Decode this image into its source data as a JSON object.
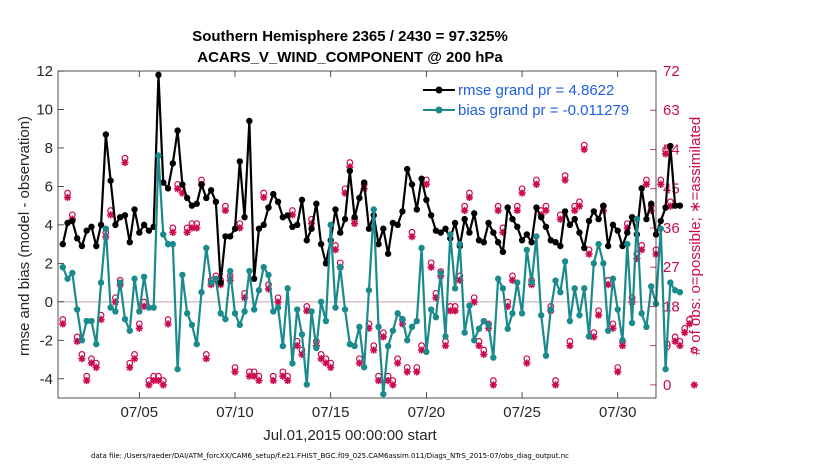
{
  "chart_data": {
    "type": "line",
    "title": "Southern Hemisphere 2365 / 2430 = 97.325%",
    "subtitle": "ACARS_V_WIND_COMPONENT @ 200 hPa",
    "xlabel": "Jul.01,2015 00:00:00 start",
    "ylabel": "rmse and bias (model - observation)",
    "ylabel_right": "# of obs: o=possible; ∗=assimilated",
    "footnote": "data file: /Users/raeder/DAI/ATM_forcXX/CAM6_setup/f.e21.FHIST_BGC.f09_025.CAM6assim.011/Diags_NTrS_2015-07/obs_diag_output.nc",
    "xlim": [
      0.75,
      32.0
    ],
    "ylim": [
      -5,
      12
    ],
    "ylim_right": [
      -3,
      72
    ],
    "x_tick_positions": [
      5,
      10,
      15,
      20,
      25,
      30
    ],
    "x_tick_labels": [
      "07/05",
      "07/10",
      "07/15",
      "07/20",
      "07/25",
      "07/30"
    ],
    "y_ticks": [
      -4,
      -2,
      0,
      2,
      4,
      6,
      8,
      10,
      12
    ],
    "y_ticks_right": [
      0,
      9,
      18,
      27,
      36,
      45,
      54,
      63,
      72
    ],
    "colors": {
      "rmse": "#000000",
      "bias": "#1a8a8c",
      "obs": "#cc0a52",
      "zero": "#c8b0b4",
      "legend_text": "#1f5fe0"
    },
    "series": [
      {
        "name": "rmse grand pr = 4.8622",
        "color": "#000000",
        "x_start": 1.0,
        "x_step": 0.25,
        "values": [
          3.0,
          4.1,
          4.2,
          3.3,
          2.9,
          3.7,
          3.9,
          2.9,
          4.0,
          8.7,
          6.3,
          4.0,
          4.4,
          4.5,
          3.1,
          4.8,
          3.6,
          4.0,
          3.7,
          3.9,
          11.8,
          6.2,
          5.9,
          7.2,
          8.9,
          6.1,
          5.4,
          5.0,
          5.1,
          6.1,
          5.4,
          5.8,
          5.2,
          1.0,
          3.4,
          3.4,
          3.8,
          7.3,
          4.4,
          9.4,
          1.2,
          3.8,
          4.0,
          4.9,
          5.6,
          5.2,
          4.4,
          4.5,
          3.9,
          4.0,
          5.3,
          3.2,
          3.8,
          5.1,
          3.0,
          2.0,
          3.2,
          4.8,
          3.6,
          4.3,
          6.8,
          4.4,
          5.4,
          6.2,
          3.8,
          4.5,
          3.0,
          3.8,
          2.5,
          4.1,
          4.0,
          4.7,
          6.9,
          6.1,
          4.8,
          6.4,
          5.3,
          4.5,
          3.7,
          3.6,
          3.8,
          3.3,
          4.1,
          2.9,
          4.3,
          3.6,
          4.6,
          3.2,
          3.1,
          4.1,
          3.6,
          3.1,
          2.6,
          4.9,
          4.3,
          3.9,
          3.2,
          3.5,
          3.1,
          4.9,
          4.4,
          3.9,
          3.2,
          3.1,
          2.9,
          4.7,
          4.0,
          4.3,
          3.6,
          2.8,
          4.2,
          4.7,
          4.3,
          5.0,
          2.9,
          4.0,
          3.7,
          2.9,
          3.6,
          4.4,
          3.5,
          5.9,
          4.3,
          5.1,
          3.5,
          4.2,
          4.9,
          8.1,
          5.0,
          5.0
        ]
      },
      {
        "name": "bias grand pr = -0.011279",
        "color": "#1a8a8c",
        "x_start": 1.0,
        "x_step": 0.25,
        "values": [
          1.8,
          1.2,
          1.5,
          -0.4,
          -2.0,
          -1.0,
          -1.0,
          -2.2,
          1.0,
          3.8,
          -0.3,
          -0.5,
          1.0,
          -0.9,
          -1.5,
          1.2,
          -0.5,
          1.3,
          -0.3,
          -0.3,
          7.6,
          3.5,
          3.0,
          3.0,
          -3.5,
          1.4,
          -0.6,
          -1.2,
          -2.2,
          0.5,
          2.8,
          1.0,
          1.2,
          -0.6,
          -0.9,
          1.6,
          -0.6,
          -1.2,
          -0.5,
          1.6,
          -0.4,
          0.6,
          1.8,
          1.4,
          -0.5,
          -0.3,
          -2.3,
          0.7,
          -3.2,
          -0.4,
          -1.7,
          -4.3,
          -0.5,
          -2.4,
          0.0,
          -1.0,
          4.0,
          -0.3,
          1.8,
          -0.4,
          -2.2,
          -2.3,
          -1.3,
          -3.4,
          0.6,
          4.8,
          -1.3,
          -4.8,
          -2.3,
          -1.5,
          -0.6,
          -0.9,
          -2.0,
          -1.3,
          -1.0,
          2.8,
          -2.6,
          -0.4,
          -0.8,
          1.5,
          -1.8,
          3.5,
          0.7,
          3.0,
          -1.6,
          -0.2,
          -2.0,
          -1.4,
          -1.0,
          -1.2,
          -2.9,
          1.2,
          0.7,
          -1.4,
          -0.6,
          1.0,
          -0.6,
          2.7,
          1.0,
          3.4,
          -0.7,
          -2.8,
          -0.4,
          1.1,
          0.5,
          2.1,
          -1.0,
          0.7,
          -0.7,
          0.7,
          -1.8,
          2.0,
          3.0,
          2.0,
          -1.5,
          1.2,
          -0.4,
          -2.0,
          3.0,
          -1.1,
          4.3,
          -0.6,
          -1.3,
          0.8,
          -0.1,
          3.8,
          -3.5,
          1.0,
          0.6,
          0.5
        ]
      }
    ],
    "obs_possible": {
      "x_start": 1.0,
      "x_step": 0.25,
      "values": [
        15,
        44,
        39,
        11,
        7,
        2,
        6,
        5,
        16,
        35,
        40,
        20,
        24,
        52,
        5,
        7,
        14,
        19,
        1,
        2,
        2,
        1,
        15,
        36,
        46,
        45,
        36,
        37,
        37,
        47,
        7,
        24,
        25,
        24,
        41,
        25,
        4,
        37,
        21,
        3,
        3,
        2,
        44,
        23,
        2,
        20,
        3,
        2,
        40,
        10,
        8,
        18,
        38,
        10,
        7,
        6,
        5,
        32,
        28,
        45,
        51,
        38,
        6,
        46,
        14,
        9,
        2,
        12,
        2,
        1,
        6,
        15,
        4,
        35,
        4,
        9,
        47,
        28,
        21,
        26,
        10,
        18,
        18,
        25,
        41,
        44,
        20,
        10,
        8,
        14,
        1,
        41,
        36,
        19,
        25,
        41,
        45,
        6,
        24,
        47,
        40,
        41,
        18,
        1,
        39,
        48,
        10,
        41,
        42,
        55,
        31,
        12,
        17,
        41,
        24,
        14,
        4,
        10,
        37,
        20,
        30,
        32,
        47,
        41,
        31,
        47,
        54,
        42,
        11,
        10,
        13,
        15,
        8
      ]
    },
    "obs_assimilated": {
      "x_start": 1.0,
      "x_step": 0.25,
      "values": [
        14,
        43,
        38,
        10,
        6,
        1,
        5,
        4,
        15,
        34,
        39,
        19,
        23,
        51,
        4,
        6,
        13,
        18,
        0,
        1,
        1,
        0,
        14,
        35,
        45,
        44,
        35,
        36,
        36,
        46,
        6,
        23,
        24,
        23,
        40,
        24,
        3,
        36,
        20,
        2,
        2,
        1,
        43,
        22,
        1,
        19,
        2,
        1,
        39,
        9,
        7,
        17,
        37,
        9,
        6,
        5,
        4,
        31,
        27,
        44,
        50,
        37,
        5,
        45,
        13,
        8,
        1,
        11,
        1,
        0,
        5,
        14,
        3,
        34,
        3,
        8,
        46,
        27,
        20,
        25,
        9,
        17,
        17,
        24,
        40,
        43,
        19,
        9,
        7,
        13,
        0,
        40,
        35,
        18,
        24,
        40,
        44,
        5,
        23,
        46,
        39,
        40,
        17,
        0,
        38,
        47,
        9,
        40,
        41,
        54,
        30,
        11,
        16,
        40,
        23,
        13,
        3,
        9,
        36,
        19,
        29,
        31,
        46,
        40,
        30,
        46,
        53,
        41,
        10,
        9,
        12,
        14,
        0
      ]
    }
  }
}
